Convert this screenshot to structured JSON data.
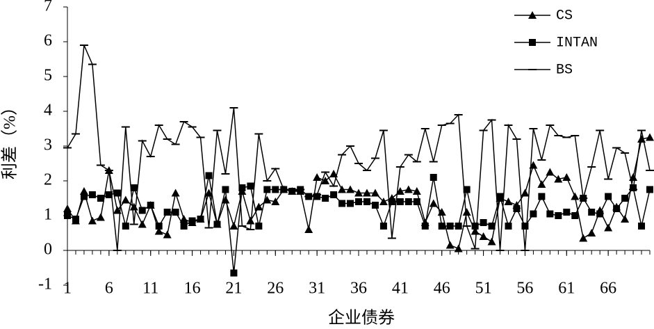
{
  "chart_data": {
    "type": "line",
    "x_label": "企业债券",
    "y_label": "利差（%）",
    "x": [
      1,
      2,
      3,
      4,
      5,
      6,
      7,
      8,
      9,
      10,
      11,
      12,
      13,
      14,
      15,
      16,
      17,
      18,
      19,
      20,
      21,
      22,
      23,
      24,
      25,
      26,
      27,
      28,
      29,
      30,
      31,
      32,
      33,
      34,
      35,
      36,
      37,
      38,
      39,
      40,
      41,
      42,
      43,
      44,
      45,
      46,
      47,
      48,
      49,
      50,
      51,
      52,
      53,
      54,
      55,
      56,
      57,
      58,
      59,
      60,
      61,
      62,
      63,
      64,
      65,
      66,
      67,
      68,
      69,
      70,
      71
    ],
    "series": [
      {
        "name": "CS",
        "color": "#000000",
        "marker": "triangle",
        "values": [
          1.2,
          0.85,
          1.7,
          0.85,
          0.95,
          2.3,
          1.15,
          1.45,
          1.25,
          0.75,
          1.3,
          0.55,
          0.45,
          1.65,
          0.9,
          0.8,
          0.9,
          1.65,
          0.75,
          1.45,
          0.7,
          1.7,
          0.85,
          1.25,
          1.45,
          1.4,
          1.75,
          1.7,
          1.7,
          0.6,
          2.1,
          2.0,
          2.2,
          1.75,
          1.75,
          1.65,
          1.65,
          1.65,
          1.4,
          1.5,
          1.7,
          1.75,
          1.7,
          0.8,
          1.35,
          1.1,
          0.15,
          0.05,
          1.1,
          0.55,
          0.4,
          0.25,
          1.5,
          1.4,
          1.3,
          1.65,
          2.45,
          1.9,
          2.25,
          2.05,
          2.1,
          1.55,
          0.35,
          0.5,
          1.15,
          0.65,
          1.25,
          0.9,
          2.1,
          3.2,
          3.25
        ]
      },
      {
        "name": "INTAN",
        "color": "#000000",
        "marker": "square",
        "values": [
          1.0,
          0.9,
          1.55,
          1.6,
          1.5,
          1.6,
          1.65,
          0.7,
          1.8,
          1.15,
          1.3,
          0.7,
          1.1,
          1.1,
          0.7,
          0.85,
          0.9,
          2.15,
          0.75,
          1.75,
          -0.65,
          1.8,
          1.85,
          0.7,
          1.75,
          1.75,
          1.75,
          1.7,
          1.75,
          1.55,
          1.55,
          1.5,
          1.6,
          1.35,
          1.35,
          1.4,
          1.4,
          1.3,
          0.7,
          1.4,
          1.4,
          1.4,
          1.4,
          0.7,
          2.1,
          0.7,
          0.7,
          0.7,
          1.75,
          0.7,
          0.8,
          0.7,
          1.55,
          0.7,
          1.2,
          0.7,
          1.05,
          1.55,
          1.05,
          1.0,
          1.1,
          1.0,
          1.5,
          1.1,
          1.05,
          1.55,
          1.2,
          1.5,
          1.8,
          0.7,
          1.75
        ]
      },
      {
        "name": "BS",
        "color": "#000000",
        "marker": "dash",
        "values": [
          2.95,
          3.35,
          5.9,
          5.35,
          2.45,
          2.3,
          0.0,
          3.55,
          0.75,
          3.15,
          2.7,
          3.6,
          3.2,
          3.05,
          3.7,
          3.55,
          3.25,
          0.65,
          3.45,
          2.2,
          4.1,
          0.7,
          0.6,
          3.35,
          2.0,
          2.35,
          1.75,
          1.75,
          1.75,
          1.55,
          1.6,
          2.25,
          1.85,
          2.75,
          3.0,
          2.5,
          2.3,
          2.65,
          3.45,
          0.35,
          2.4,
          2.75,
          2.55,
          3.5,
          2.55,
          3.6,
          3.65,
          3.9,
          0.7,
          0.05,
          3.45,
          3.75,
          0.0,
          3.6,
          3.2,
          0.0,
          3.5,
          2.6,
          3.6,
          3.3,
          3.25,
          3.3,
          1.5,
          2.4,
          3.45,
          2.05,
          2.95,
          2.8,
          1.75,
          3.45,
          2.3
        ]
      }
    ],
    "xlim": [
      1,
      71
    ],
    "xticks": [
      1,
      6,
      11,
      16,
      21,
      26,
      31,
      36,
      41,
      46,
      51,
      56,
      61,
      66
    ],
    "ylim": [
      -1,
      7
    ],
    "yticks": [
      -1,
      0,
      1,
      2,
      3,
      4,
      5,
      6,
      7
    ],
    "legend": "upper right",
    "grid": false
  }
}
